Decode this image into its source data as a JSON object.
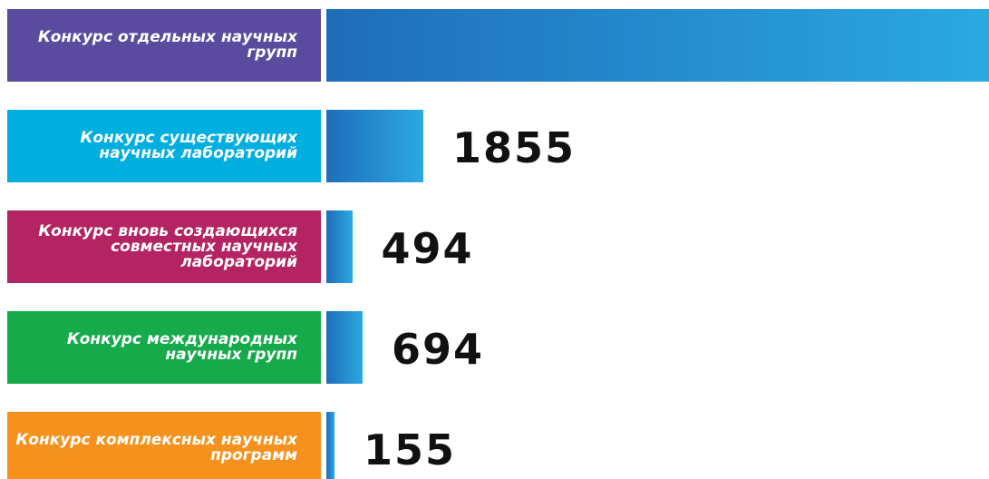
{
  "chart_data": {
    "type": "bar",
    "categories": [
      "Конкурс отдельных научных\nгрупп",
      "Конкурс существующих\nнаучных лабораторий",
      "Конкурс вновь создающихся\nсовместных научных\nлабораторий",
      "Конкурс международных\nнаучных групп",
      "Конкурс комплексных научных\nпрограмм"
    ],
    "category_colors": [
      "#5a4b9e",
      "#00aee0",
      "#b42362",
      "#17aa4b",
      "#f5921e"
    ],
    "values": [
      12670,
      1855,
      494,
      694,
      155
    ],
    "color": [
      "#1f6dba",
      "#2aa9e1"
    ],
    "xlim": [
      0,
      12670
    ]
  }
}
